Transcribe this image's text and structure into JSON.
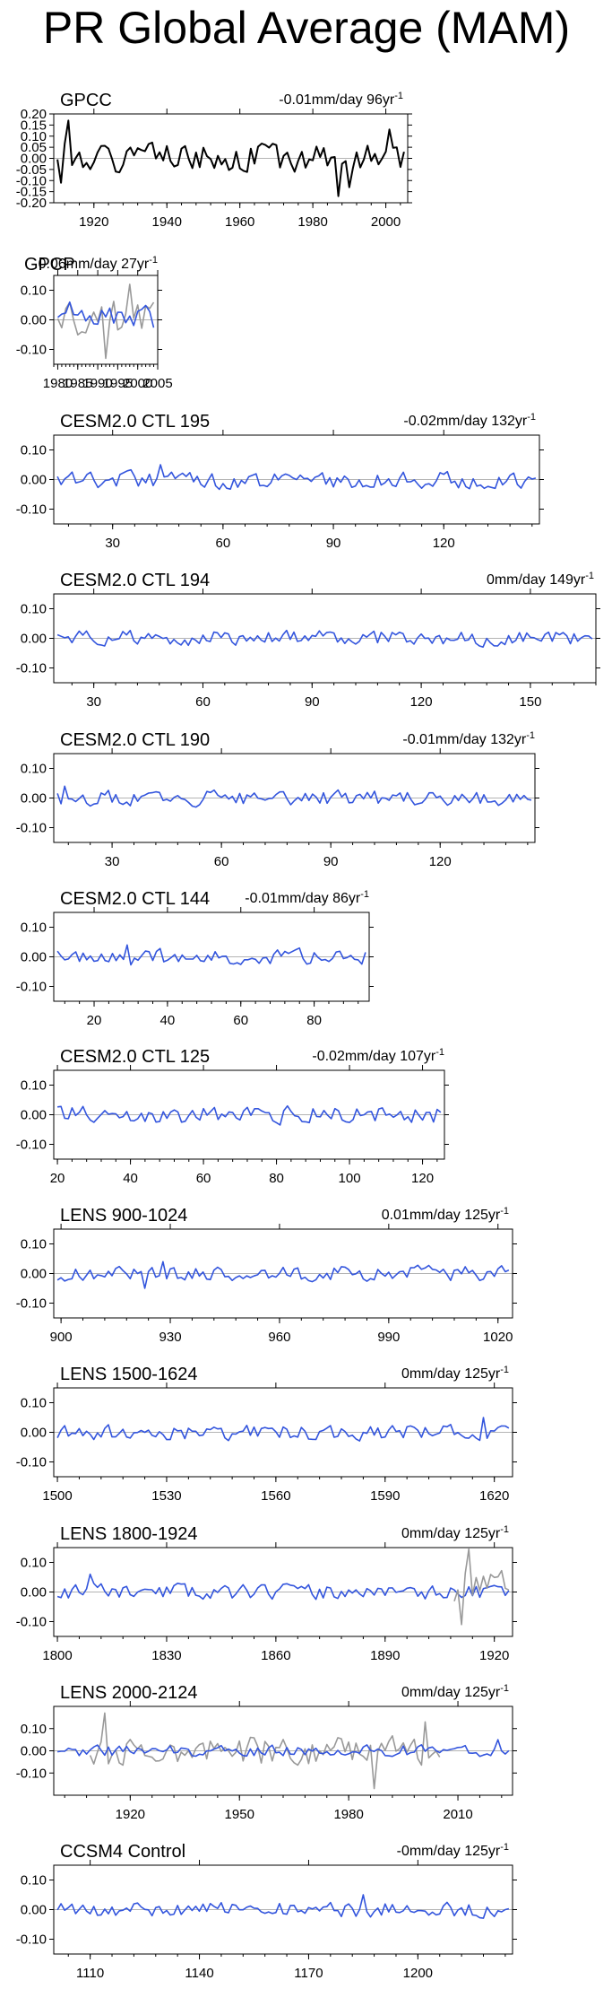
{
  "title": "PR Global Average (MAM)",
  "colors": {
    "obs": "#000000",
    "model": "#3355dd",
    "overlay": "#999999",
    "zero": "#b4b4b4"
  },
  "chart_data": [
    {
      "type": "line",
      "title": "GPCC",
      "trend": "-0.01mm/day 96yr",
      "trend_sup": "-1",
      "xlim": [
        1909,
        2006
      ],
      "ylim": [
        -0.2,
        0.2
      ],
      "yticks": [
        0.2,
        0.15,
        0.1,
        0.05,
        0,
        -0.05,
        -0.1,
        -0.15,
        -0.2
      ],
      "ytick_labels": [
        "0.20",
        "0.15",
        "0.10",
        "0.05",
        "0.00",
        "-0.05",
        "-0.10",
        "-0.15",
        "-0.20"
      ],
      "xticks": [
        1920,
        1940,
        1960,
        1980,
        2000
      ],
      "xtick_labels": [
        "1920",
        "1940",
        "1960",
        "1980",
        "2000"
      ],
      "series": [
        {
          "name": "GPCC",
          "color": "obs",
          "seed": 1,
          "amp": 0.075,
          "spikes": [
            [
              1913,
              0.17
            ],
            [
              1911,
              -0.11
            ],
            [
              1987,
              -0.17
            ],
            [
              1990,
              -0.13
            ],
            [
              2001,
              0.13
            ]
          ]
        }
      ]
    },
    {
      "type": "line",
      "title": "GPCP",
      "trend": "0.06mm/day 27yr",
      "trend_sup": "-1",
      "xlim": [
        1979,
        2005
      ],
      "ylim": [
        -0.15,
        0.15
      ],
      "yticks": [
        0.1,
        0,
        -0.1
      ],
      "ytick_labels": [
        "0.10",
        "0.00",
        "-0.10"
      ],
      "xticks": [
        1980,
        1985,
        1990,
        1995,
        2000,
        2005
      ],
      "xtick_labels": [
        "1980",
        "1985",
        "1990",
        "1995",
        "2000",
        "2005"
      ],
      "series": [
        {
          "name": "GPCC",
          "color": "overlay",
          "seed": 2,
          "amp": 0.08,
          "spikes": [
            [
              1992,
              -0.13
            ],
            [
              1998,
              0.12
            ]
          ]
        },
        {
          "name": "GPCP",
          "color": "model",
          "seed": 3,
          "amp": 0.05,
          "spikes": [
            [
              1983,
              0.06
            ],
            [
              2005,
              0.09
            ]
          ]
        }
      ]
    },
    {
      "type": "line",
      "title": "CESM2.0 CTL 195",
      "trend": "-0.02mm/day 132yr",
      "trend_sup": "-1",
      "xlim": [
        14,
        146
      ],
      "ylim": [
        -0.15,
        0.15
      ],
      "yticks": [
        0.1,
        0,
        -0.1
      ],
      "ytick_labels": [
        "0.10",
        "0.00",
        "-0.10"
      ],
      "xticks": [
        30,
        60,
        90,
        120
      ],
      "xtick_labels": [
        "30",
        "60",
        "90",
        "120"
      ],
      "series": [
        {
          "name": "CTL 195",
          "color": "model",
          "seed": 4,
          "amp": 0.035,
          "spikes": [
            [
              43,
              0.05
            ]
          ]
        }
      ]
    },
    {
      "type": "line",
      "title": "CESM2.0 CTL 194",
      "trend": "0mm/day 149yr",
      "trend_sup": "-1",
      "xlim": [
        19,
        168
      ],
      "ylim": [
        -0.15,
        0.15
      ],
      "yticks": [
        0.1,
        0,
        -0.1
      ],
      "ytick_labels": [
        "0.10",
        "0.00",
        "-0.10"
      ],
      "xticks": [
        30,
        60,
        90,
        120,
        150
      ],
      "xtick_labels": [
        "30",
        "60",
        "90",
        "120",
        "150"
      ],
      "series": [
        {
          "name": "CTL 194",
          "color": "model",
          "seed": 5,
          "amp": 0.03,
          "spikes": []
        }
      ]
    },
    {
      "type": "line",
      "title": "CESM2.0 CTL 190",
      "trend": "-0.01mm/day 132yr",
      "trend_sup": "-1",
      "xlim": [
        14,
        146
      ],
      "ylim": [
        -0.15,
        0.15
      ],
      "yticks": [
        0.1,
        0,
        -0.1
      ],
      "ytick_labels": [
        "0.10",
        "0.00",
        "-0.10"
      ],
      "xticks": [
        30,
        60,
        90,
        120
      ],
      "xtick_labels": [
        "30",
        "60",
        "90",
        "120"
      ],
      "series": [
        {
          "name": "CTL 190",
          "color": "model",
          "seed": 6,
          "amp": 0.03,
          "spikes": [
            [
              17,
              0.04
            ]
          ]
        }
      ]
    },
    {
      "type": "line",
      "title": "CESM2.0 CTL 144",
      "trend": "-0.01mm/day 86yr",
      "trend_sup": "-1",
      "xlim": [
        9,
        95
      ],
      "ylim": [
        -0.15,
        0.15
      ],
      "yticks": [
        0.1,
        0,
        -0.1
      ],
      "ytick_labels": [
        "0.10",
        "0.00",
        "-0.10"
      ],
      "xticks": [
        20,
        40,
        60,
        80
      ],
      "xtick_labels": [
        "20",
        "40",
        "60",
        "80"
      ],
      "series": [
        {
          "name": "CTL 144",
          "color": "model",
          "seed": 7,
          "amp": 0.03,
          "spikes": [
            [
              29,
              0.04
            ]
          ]
        }
      ]
    },
    {
      "type": "line",
      "title": "CESM2.0 CTL 125",
      "trend": "-0.02mm/day 107yr",
      "trend_sup": "-1",
      "xlim": [
        19,
        126
      ],
      "ylim": [
        -0.15,
        0.15
      ],
      "yticks": [
        0.1,
        0,
        -0.1
      ],
      "ytick_labels": [
        "0.10",
        "0.00",
        "-0.10"
      ],
      "xticks": [
        20,
        40,
        60,
        80,
        100,
        120
      ],
      "xtick_labels": [
        "20",
        "40",
        "60",
        "80",
        "100",
        "120"
      ],
      "series": [
        {
          "name": "CTL 125",
          "color": "model",
          "seed": 8,
          "amp": 0.035,
          "spikes": []
        }
      ]
    },
    {
      "type": "line",
      "title": "LENS 900-1024",
      "trend": "0.01mm/day 125yr",
      "trend_sup": "-1",
      "xlim": [
        898,
        1024
      ],
      "ylim": [
        -0.15,
        0.15
      ],
      "yticks": [
        0.1,
        0,
        -0.1
      ],
      "ytick_labels": [
        "0.10",
        "0.00",
        "-0.10"
      ],
      "xticks": [
        900,
        930,
        960,
        990,
        1020
      ],
      "xtick_labels": [
        "900",
        "930",
        "960",
        "990",
        "1020"
      ],
      "series": [
        {
          "name": "LENS 900",
          "color": "model",
          "seed": 9,
          "amp": 0.03,
          "spikes": [
            [
              928,
              0.04
            ],
            [
              923,
              -0.05
            ]
          ]
        }
      ]
    },
    {
      "type": "line",
      "title": "LENS 1500-1624",
      "trend": "0mm/day 125yr",
      "trend_sup": "-1",
      "xlim": [
        1499,
        1625
      ],
      "ylim": [
        -0.15,
        0.15
      ],
      "yticks": [
        0.1,
        0,
        -0.1
      ],
      "ytick_labels": [
        "0.10",
        "0.00",
        "-0.10"
      ],
      "xticks": [
        1500,
        1530,
        1560,
        1590,
        1620
      ],
      "xtick_labels": [
        "1500",
        "1530",
        "1560",
        "1590",
        "1620"
      ],
      "series": [
        {
          "name": "LENS 1500",
          "color": "model",
          "seed": 10,
          "amp": 0.03,
          "spikes": [
            [
              1617,
              0.05
            ]
          ]
        }
      ]
    },
    {
      "type": "line",
      "title": "LENS 1800-1924",
      "trend": "0mm/day 125yr",
      "trend_sup": "-1",
      "xlim": [
        1799,
        1925
      ],
      "ylim": [
        -0.15,
        0.15
      ],
      "yticks": [
        0.1,
        0,
        -0.1
      ],
      "ytick_labels": [
        "0.10",
        "0.00",
        "-0.10"
      ],
      "xticks": [
        1800,
        1830,
        1860,
        1890,
        1920
      ],
      "xtick_labels": [
        "1800",
        "1830",
        "1860",
        "1890",
        "1920"
      ],
      "series": [
        {
          "name": "LENS 1800",
          "color": "model",
          "seed": 11,
          "amp": 0.03,
          "spikes": [
            [
              1809,
              0.06
            ]
          ]
        },
        {
          "name": "GPCC",
          "color": "overlay",
          "seed": 12,
          "amp": 0.08,
          "start": 1909,
          "spikes": [
            [
              1913,
              0.17
            ],
            [
              1911,
              -0.11
            ]
          ]
        }
      ]
    },
    {
      "type": "line",
      "title": "LENS 2000-2124",
      "trend": "0mm/day 125yr",
      "trend_sup": "-1",
      "xlim": [
        1899,
        2025
      ],
      "ylim": [
        -0.2,
        0.2
      ],
      "yticks": [
        0.1,
        0,
        -0.1
      ],
      "ytick_labels": [
        "0.10",
        "0.00",
        "-0.10"
      ],
      "xticks": [
        1920,
        1950,
        1980,
        2010
      ],
      "xtick_labels": [
        "1920",
        "1950",
        "1980",
        "2010"
      ],
      "series": [
        {
          "name": "GPCC",
          "color": "overlay",
          "seed": 13,
          "amp": 0.075,
          "start": 1909,
          "end": 2005,
          "spikes": [
            [
              1913,
              0.17
            ],
            [
              1987,
              -0.17
            ],
            [
              2001,
              0.13
            ]
          ]
        },
        {
          "name": "LENS 2000",
          "color": "model",
          "seed": 14,
          "amp": 0.03,
          "spikes": [
            [
              2021,
              0.05
            ]
          ]
        }
      ]
    },
    {
      "type": "line",
      "title": "CCSM4 Control",
      "trend": "-0mm/day 125yr",
      "trend_sup": "-1",
      "xlim": [
        1100,
        1226
      ],
      "ylim": [
        -0.15,
        0.15
      ],
      "yticks": [
        0.1,
        0,
        -0.1
      ],
      "ytick_labels": [
        "0.10",
        "0.00",
        "-0.10"
      ],
      "xticks": [
        1110,
        1140,
        1170,
        1200
      ],
      "xtick_labels": [
        "1110",
        "1140",
        "1170",
        "1200"
      ],
      "series": [
        {
          "name": "CCSM4",
          "color": "model",
          "seed": 15,
          "amp": 0.03,
          "spikes": [
            [
              1185,
              0.05
            ]
          ]
        }
      ]
    }
  ]
}
